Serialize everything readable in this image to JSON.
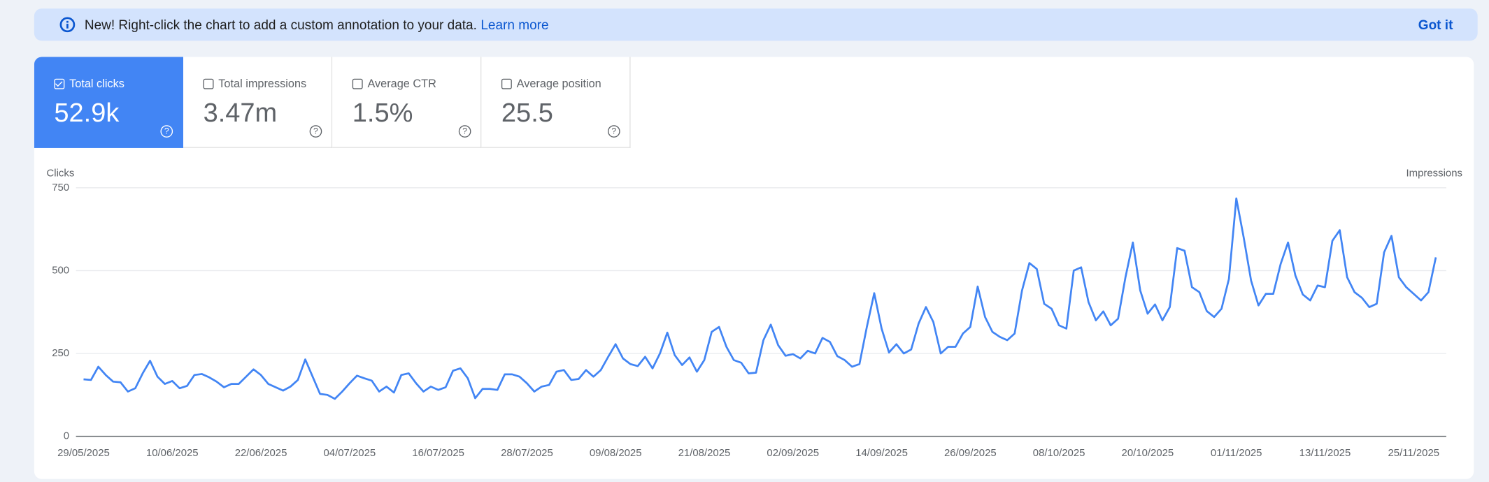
{
  "banner": {
    "message": "New! Right-click the chart to add a custom annotation to your data.",
    "link": "Learn more",
    "button": "Got it"
  },
  "metrics": [
    {
      "label": "Total clicks",
      "value": "52.9k",
      "selected": true
    },
    {
      "label": "Total impressions",
      "value": "3.47m",
      "selected": false
    },
    {
      "label": "Average CTR",
      "value": "1.5%",
      "selected": false
    },
    {
      "label": "Average position",
      "value": "25.5",
      "selected": false
    }
  ],
  "chart_data": {
    "type": "line",
    "y_label": "Clicks",
    "y2_label": "Impressions",
    "color": "#4285f4",
    "grid": true,
    "ylim": [
      0,
      750
    ],
    "yticks": [
      0,
      250,
      500,
      750
    ],
    "categories": [
      "29/05/2025",
      null,
      null,
      null,
      null,
      null,
      null,
      null,
      null,
      null,
      null,
      null,
      "10/06/2025",
      null,
      null,
      null,
      null,
      null,
      null,
      null,
      null,
      null,
      null,
      null,
      "22/06/2025",
      null,
      null,
      null,
      null,
      null,
      null,
      null,
      null,
      null,
      null,
      null,
      "04/07/2025",
      null,
      null,
      null,
      null,
      null,
      null,
      null,
      null,
      null,
      null,
      null,
      "16/07/2025",
      null,
      null,
      null,
      null,
      null,
      null,
      null,
      null,
      null,
      null,
      null,
      "28/07/2025",
      null,
      null,
      null,
      null,
      null,
      null,
      null,
      null,
      null,
      null,
      null,
      "09/08/2025",
      null,
      null,
      null,
      null,
      null,
      null,
      null,
      null,
      null,
      null,
      null,
      "21/08/2025",
      null,
      null,
      null,
      null,
      null,
      null,
      null,
      null,
      null,
      null,
      null,
      "02/09/2025",
      null,
      null,
      null,
      null,
      null,
      null,
      null,
      null,
      null,
      null,
      null,
      "14/09/2025",
      null,
      null,
      null,
      null,
      null,
      null,
      null,
      null,
      null,
      null,
      null,
      "26/09/2025",
      null,
      null,
      null,
      null,
      null,
      null,
      null,
      null,
      null,
      null,
      null,
      "08/10/2025",
      null,
      null,
      null,
      null,
      null,
      null,
      null,
      null,
      null,
      null,
      null,
      "20/10/2025",
      null,
      null,
      null,
      null,
      null,
      null,
      null,
      null,
      null,
      null,
      null,
      "01/11/2025",
      null,
      null,
      null,
      null,
      null,
      null,
      null,
      null,
      null,
      null,
      null,
      "13/11/2025",
      null,
      null,
      null,
      null,
      null,
      null,
      null,
      null,
      null,
      null,
      null,
      "25/11/2025",
      null,
      null,
      null
    ],
    "values": [
      172,
      170,
      210,
      185,
      165,
      163,
      135,
      145,
      190,
      228,
      180,
      158,
      167,
      145,
      152,
      185,
      188,
      178,
      165,
      148,
      158,
      158,
      180,
      202,
      185,
      158,
      148,
      138,
      150,
      170,
      232,
      180,
      128,
      125,
      113,
      135,
      160,
      183,
      175,
      168,
      135,
      150,
      132,
      185,
      190,
      160,
      135,
      150,
      140,
      148,
      198,
      205,
      175,
      115,
      143,
      143,
      140,
      187,
      187,
      180,
      160,
      135,
      150,
      155,
      195,
      200,
      170,
      173,
      200,
      180,
      200,
      240,
      278,
      235,
      218,
      212,
      240,
      205,
      250,
      313,
      245,
      215,
      238,
      195,
      230,
      315,
      330,
      270,
      230,
      222,
      190,
      192,
      290,
      337,
      275,
      243,
      248,
      235,
      258,
      250,
      297,
      285,
      242,
      230,
      210,
      218,
      330,
      432,
      325,
      253,
      278,
      250,
      262,
      340,
      390,
      345,
      250,
      270,
      270,
      310,
      330,
      452,
      360,
      315,
      300,
      290,
      310,
      440,
      523,
      505,
      400,
      385,
      335,
      325,
      500,
      510,
      405,
      350,
      377,
      335,
      355,
      480,
      585,
      440,
      370,
      398,
      350,
      390,
      568,
      560,
      450,
      435,
      378,
      360,
      385,
      475,
      718,
      600,
      470,
      395,
      430,
      430,
      520,
      585,
      485,
      428,
      410,
      455,
      450,
      590,
      622,
      480,
      435,
      418,
      390,
      400,
      555,
      605,
      480,
      450,
      430,
      410,
      435,
      540
    ]
  }
}
